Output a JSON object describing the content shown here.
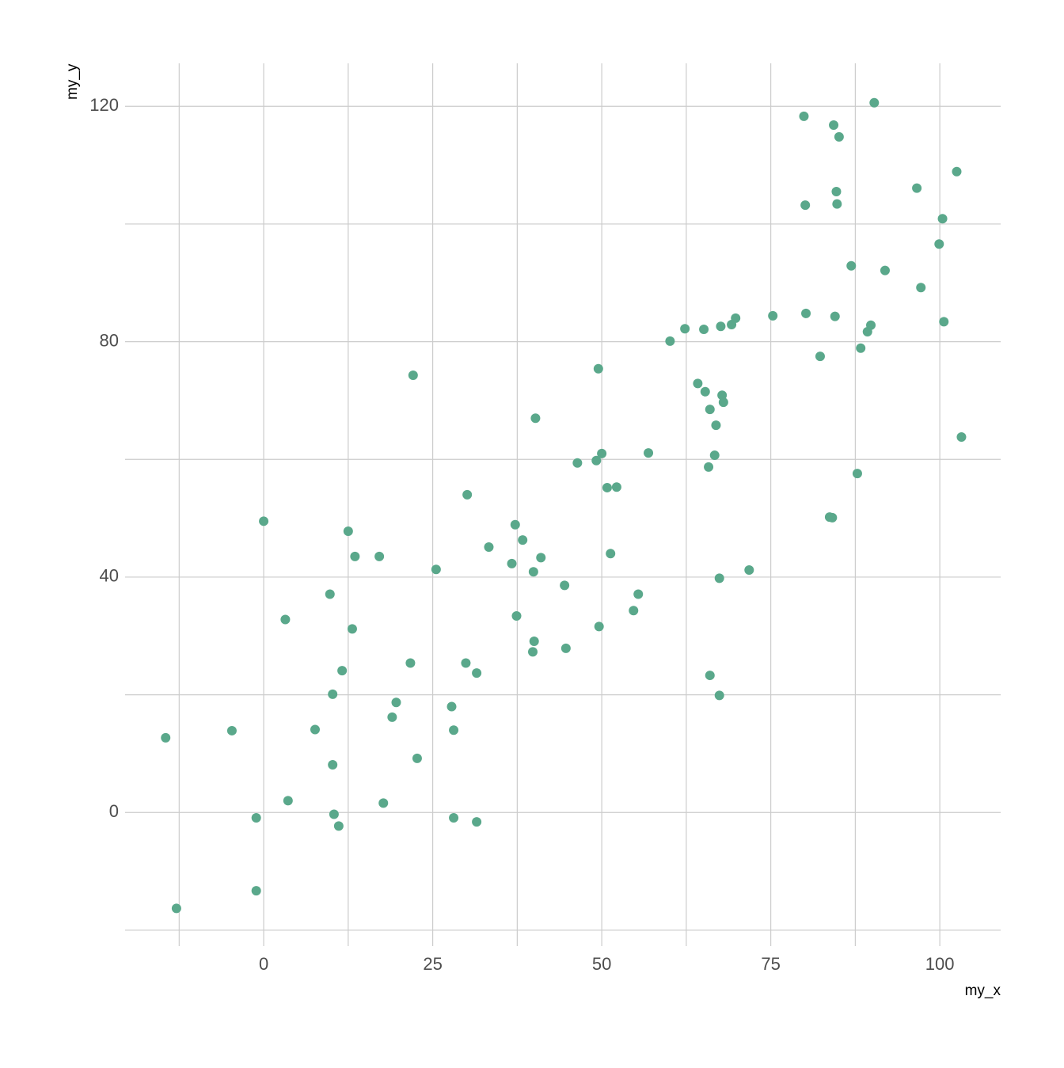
{
  "chart_data": {
    "type": "scatter",
    "x_label": "my_x",
    "y_label": "my_y",
    "color": "#5aa88b",
    "xlim": [
      -20.5,
      109.0
    ],
    "ylim": [
      -22.7,
      127.3
    ],
    "xticks": [
      0,
      25,
      50,
      75,
      100
    ],
    "yticks": [
      0,
      40,
      80,
      120
    ],
    "x_minor_grid": [
      -12.5,
      12.5,
      37.5,
      62.5,
      87.5
    ],
    "y_minor_grid": [
      -20,
      20,
      60,
      100
    ],
    "grid": true,
    "x": [
      -14.5,
      -12.9,
      -4.7,
      -1.1,
      -1.1,
      0.0,
      3.2,
      3.6,
      7.6,
      9.8,
      10.2,
      10.2,
      10.4,
      11.1,
      11.6,
      12.5,
      13.1,
      13.5,
      17.1,
      17.7,
      19.0,
      19.6,
      21.7,
      22.1,
      22.7,
      25.5,
      27.8,
      28.1,
      28.1,
      29.9,
      30.1,
      31.5,
      31.5,
      33.3,
      36.7,
      37.2,
      37.4,
      38.3,
      39.8,
      39.9,
      40.0,
      40.2,
      41.0,
      44.5,
      44.7,
      46.4,
      49.2,
      49.5,
      49.6,
      50.0,
      50.8,
      51.3,
      52.2,
      54.7,
      55.4,
      56.9,
      60.1,
      62.3,
      64.2,
      65.1,
      65.3,
      65.8,
      66.0,
      66.0,
      66.7,
      66.9,
      67.4,
      67.4,
      67.6,
      67.8,
      68.0,
      69.2,
      69.8,
      71.8,
      75.3,
      79.9,
      80.1,
      80.2,
      82.3,
      83.7,
      84.1,
      84.3,
      84.5,
      84.7,
      84.8,
      85.1,
      86.9,
      87.8,
      88.3,
      89.3,
      89.8,
      90.3,
      91.9,
      96.6,
      97.2,
      99.9,
      100.4,
      100.6,
      102.5,
      103.2
    ],
    "values": [
      12.7,
      -16.3,
      13.9,
      -0.9,
      -13.3,
      49.5,
      32.8,
      2.0,
      14.1,
      37.1,
      20.1,
      8.1,
      -0.3,
      -2.3,
      24.1,
      47.8,
      31.2,
      43.5,
      43.5,
      1.6,
      16.2,
      18.7,
      25.4,
      74.3,
      9.2,
      41.3,
      18.0,
      -0.9,
      14.0,
      25.4,
      54.0,
      23.7,
      -1.6,
      45.1,
      42.3,
      48.9,
      33.4,
      46.3,
      27.3,
      40.9,
      29.1,
      67.0,
      43.3,
      38.6,
      27.9,
      59.4,
      59.8,
      75.4,
      31.6,
      61.0,
      55.2,
      44.0,
      55.3,
      34.3,
      37.1,
      61.1,
      80.1,
      82.2,
      72.9,
      82.1,
      71.5,
      58.7,
      68.5,
      23.3,
      60.7,
      65.8,
      39.8,
      19.9,
      82.6,
      70.9,
      69.7,
      82.9,
      84.0,
      41.2,
      84.4,
      118.3,
      103.2,
      84.8,
      77.5,
      50.2,
      50.1,
      116.8,
      84.3,
      105.5,
      103.4,
      114.8,
      92.9,
      57.6,
      78.9,
      81.7,
      82.8,
      120.6,
      92.1,
      106.1,
      89.2,
      96.6,
      100.9,
      83.4,
      108.9,
      63.8
    ]
  }
}
